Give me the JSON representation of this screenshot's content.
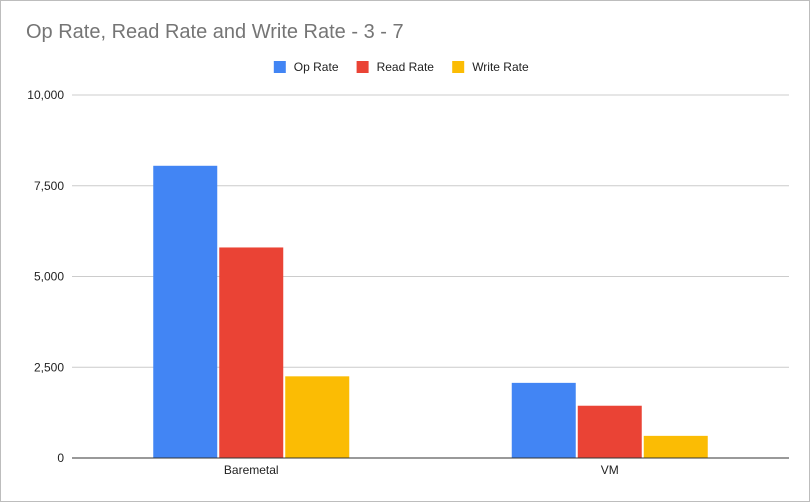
{
  "chart_data": {
    "type": "bar",
    "title": "Op Rate, Read Rate and Write Rate - 3 - 7",
    "categories": [
      "Baremetal",
      "VM"
    ],
    "series": [
      {
        "name": "Op Rate",
        "color": "#4285f4",
        "values": [
          8050,
          2070
        ]
      },
      {
        "name": "Read Rate",
        "color": "#ea4335",
        "values": [
          5800,
          1440
        ]
      },
      {
        "name": "Write Rate",
        "color": "#fbbc04",
        "values": [
          2250,
          610
        ]
      }
    ],
    "xlabel": "",
    "ylabel": "",
    "ylim": [
      0,
      10000
    ],
    "yticks": [
      0,
      2500,
      5000,
      7500,
      10000
    ],
    "ytick_labels": [
      "0",
      "2,500",
      "5,000",
      "7,500",
      "10,000"
    ],
    "grid": true,
    "legend_position": "top-center"
  }
}
